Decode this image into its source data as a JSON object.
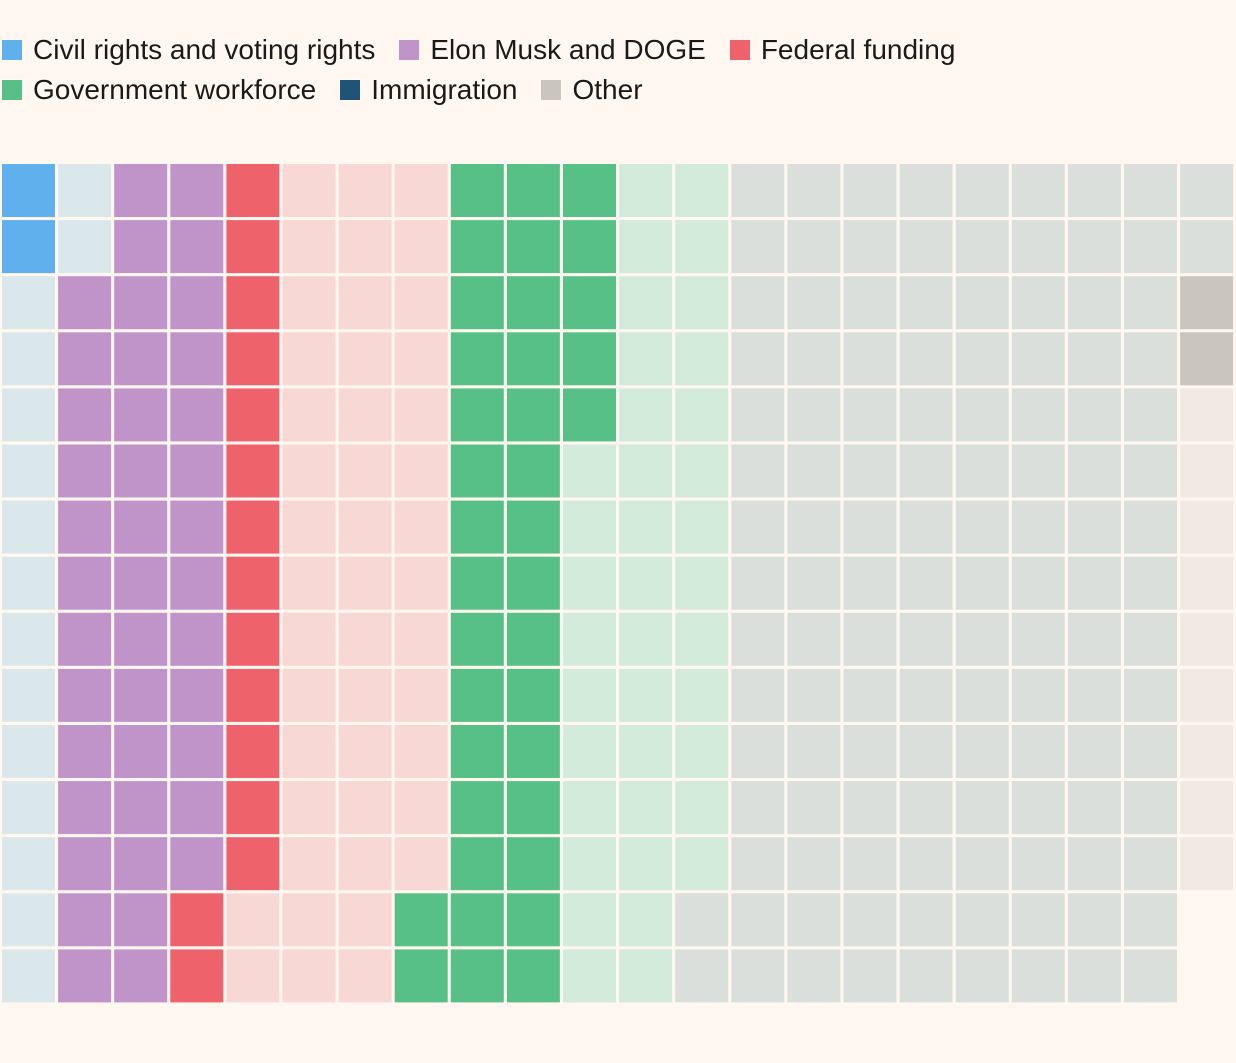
{
  "chart_data": {
    "type": "waffle",
    "title": "",
    "units_note": "",
    "legend": [
      {
        "key": "civil",
        "label": "Civil rights and voting rights",
        "color": "#5fb0ec"
      },
      {
        "key": "musk",
        "label": "Elon Musk and DOGE",
        "color": "#c094c9"
      },
      {
        "key": "funding",
        "label": "Federal funding",
        "color": "#ee626b"
      },
      {
        "key": "workforce",
        "label": "Government workforce",
        "color": "#57c087"
      },
      {
        "key": "immigration",
        "label": "Immigration",
        "color": "#1f5477"
      },
      {
        "key": "other",
        "label": "Other",
        "color": "#cbc5bf"
      }
    ],
    "faded_colors": {
      "civil": "#dae8ec",
      "musk": "#c094c9",
      "funding": "#f8d8d4",
      "workforce": "#d3ebdb",
      "immigration": "#dadfdb",
      "other": "#f3e9e3"
    },
    "rows": 15,
    "columns": 22,
    "column_fill": [
      15,
      15,
      15,
      15,
      15,
      15,
      15,
      15,
      15,
      15,
      15,
      15,
      15,
      15,
      15,
      15,
      15,
      15,
      15,
      15,
      15,
      13
    ],
    "segments": [
      {
        "category": "civil",
        "highlighted": 2,
        "faded": 15
      },
      {
        "category": "musk",
        "highlighted": 41,
        "faded": 0
      },
      {
        "category": "funding",
        "highlighted": 15,
        "faded": 45
      },
      {
        "category": "workforce",
        "highlighted": 37,
        "faded": 38
      },
      {
        "category": "immigration",
        "highlighted": 0,
        "faded": 124
      },
      {
        "category": "other",
        "highlighted": 2,
        "faded": 9
      }
    ]
  }
}
